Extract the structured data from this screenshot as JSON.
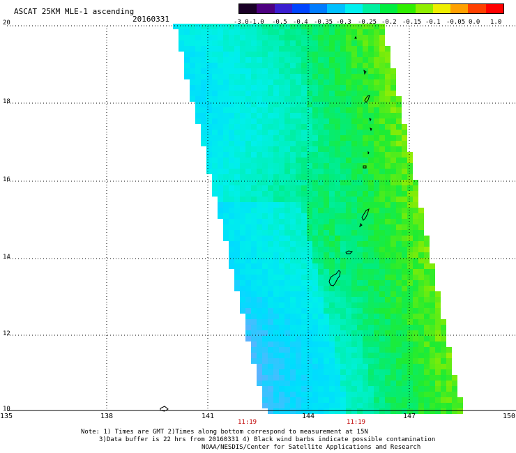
{
  "header": {
    "title": "ASCAT 25KM MLE-1 ascending",
    "date": "20160331"
  },
  "colorbar": {
    "tick_labels": [
      "-3.0",
      "-1.0",
      "-0.5",
      "-0.4",
      "-0.35",
      "-0.3",
      "-0.25",
      "-0.2",
      "-0.15",
      "-0.1",
      "-0.05",
      "0.0",
      "1.0"
    ],
    "colors": [
      "#1a0026",
      "#4d0080",
      "#3a1ed0",
      "#0044ff",
      "#007cff",
      "#00c0ff",
      "#00f0f0",
      "#00f0a0",
      "#00ee40",
      "#30ee00",
      "#90ee00",
      "#eeee00",
      "#ffa000",
      "#ff4000",
      "#ff0000"
    ]
  },
  "axes": {
    "y_labels": [
      "20",
      "18",
      "16",
      "14",
      "12",
      "10"
    ],
    "x_labels": [
      "135",
      "138",
      "141",
      "144",
      "147",
      "150"
    ],
    "pass_times": [
      "11:19",
      "11:19"
    ]
  },
  "notes": {
    "line1": "Note: 1) Times are GMT 2)Times along bottom correspond to measurement at 15N",
    "line2": "3)Data buffer is 22 hrs from 20160331 4) Black wind barbs indicate possible contamination",
    "line3": "NOAA/NESDIS/Center for Satellite Applications and Research"
  },
  "map_data": {
    "lon_range": [
      135,
      150
    ],
    "lat_range": [
      10,
      20
    ],
    "swath_dominant_value_range": [
      -0.35,
      -0.15
    ],
    "islands": [
      "Guam",
      "Rota",
      "Saipan",
      "Anatahan",
      "Pagan",
      "Agrihan"
    ]
  }
}
